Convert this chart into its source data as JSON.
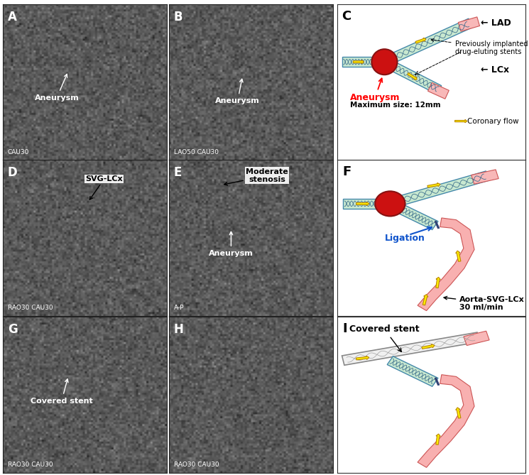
{
  "panel_labels": [
    "A",
    "B",
    "C",
    "D",
    "E",
    "F",
    "G",
    "H",
    "I"
  ],
  "panel_subtitles": {
    "A": "CAU30",
    "B": "LAO50 CAU30",
    "D": "RAO30 CAU30",
    "E": "A-P",
    "G": "RAO30 CAU30",
    "H": "RAO30 CAU30"
  },
  "colors": {
    "photo_bg_dark": "#383838",
    "photo_bg_mid": "#606060",
    "vessel_stent_fill": "#c8e8d0",
    "vessel_stent_border": "#5599aa",
    "vessel_plain_fill": "#f5b0b0",
    "vessel_plain_border": "#cc5555",
    "aneurysm_fill": "#cc1111",
    "aneurysm_border": "#881111",
    "yellow_arrow_fill": "#ffee00",
    "yellow_arrow_border": "#bb8800",
    "ligation_fill": "#334477",
    "covered_fill": "#f0f0f0",
    "covered_border": "#888888",
    "stent_wave_color": "#336688"
  }
}
